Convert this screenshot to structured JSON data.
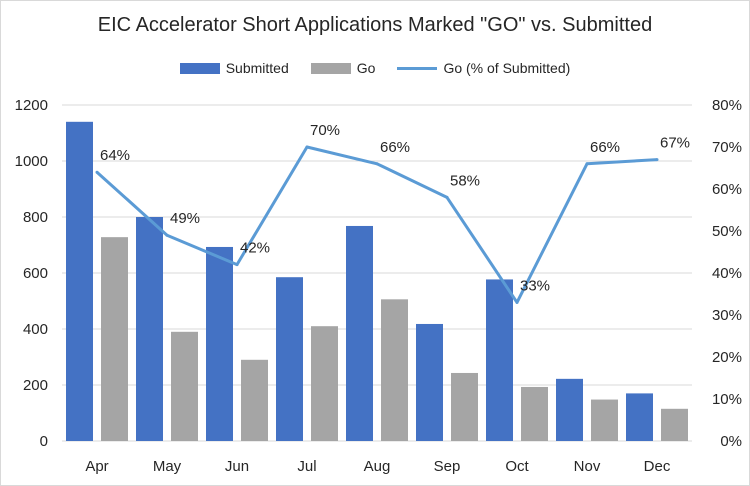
{
  "chart_data": {
    "type": "bar",
    "title": "EIC Accelerator Short Applications Marked \"GO\" vs. Submitted",
    "categories": [
      "Apr",
      "May",
      "Jun",
      "Jul",
      "Aug",
      "Sep",
      "Oct",
      "Nov",
      "Dec"
    ],
    "series": [
      {
        "name": "Submitted",
        "type": "bar",
        "axis": "left",
        "color": "#4472c4",
        "values": [
          1140,
          800,
          693,
          585,
          768,
          418,
          577,
          222,
          170
        ]
      },
      {
        "name": "Go",
        "type": "bar",
        "axis": "left",
        "color": "#a5a5a5",
        "values": [
          728,
          390,
          290,
          410,
          506,
          243,
          193,
          148,
          115
        ]
      },
      {
        "name": "Go (% of Submitted)",
        "type": "line",
        "axis": "right",
        "color": "#5b9bd5",
        "values": [
          64,
          49,
          42,
          70,
          66,
          58,
          33,
          66,
          67
        ],
        "labels": [
          "64%",
          "49%",
          "42%",
          "70%",
          "66%",
          "58%",
          "33%",
          "66%",
          "67%"
        ]
      }
    ],
    "y_left": {
      "min": 0,
      "max": 1200,
      "ticks": [
        0,
        200,
        400,
        600,
        800,
        1000,
        1200
      ]
    },
    "y_right": {
      "min": 0,
      "max": 80,
      "ticks": [
        "0%",
        "10%",
        "20%",
        "30%",
        "40%",
        "50%",
        "60%",
        "70%",
        "80%"
      ]
    },
    "legend_position": "top",
    "grid": true
  }
}
